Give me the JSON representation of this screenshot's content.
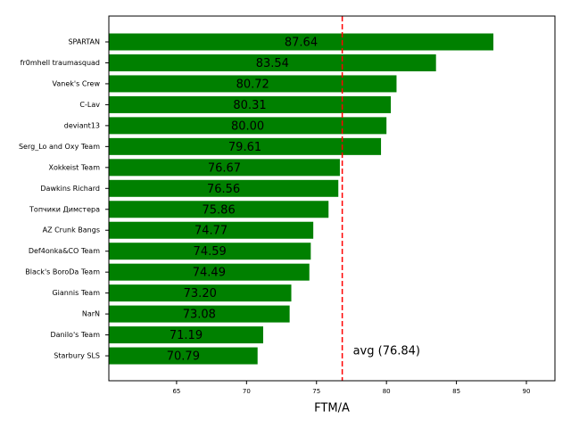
{
  "chart_data": {
    "type": "barh",
    "categories": [
      "SPARTAN",
      "fr0mhell traumasquad",
      "Vanek's Crew",
      "C-Lav",
      "deviant13",
      "Serg_Lo and Oxy Team",
      "Xokkeist Team",
      "Dawkins Richard",
      "Топчики Димстера",
      "AZ Crunk Bangs",
      "Def4onka&CO Team",
      "Black's BoroDa Team",
      "Giannis Team",
      "NarN",
      "Danilo's Team",
      "Starbury SLS"
    ],
    "values": [
      87.64,
      83.54,
      80.72,
      80.31,
      80.0,
      79.61,
      76.67,
      76.56,
      75.86,
      74.77,
      74.59,
      74.49,
      73.2,
      73.08,
      71.19,
      70.79
    ],
    "value_labels": [
      "87.64",
      "83.54",
      "80.72",
      "80.31",
      "80.00",
      "79.61",
      "76.67",
      "76.56",
      "75.86",
      "74.77",
      "74.59",
      "74.49",
      "73.20",
      "73.08",
      "71.19",
      "70.79"
    ],
    "color": "#008000",
    "xlabel": "FTM/A",
    "xlim": [
      60.16,
      92.04
    ],
    "xticks": [
      65,
      70,
      75,
      80,
      85,
      90
    ],
    "avg": 76.84,
    "avg_label": "avg (76.84)",
    "avg_color": "#ff0000"
  }
}
